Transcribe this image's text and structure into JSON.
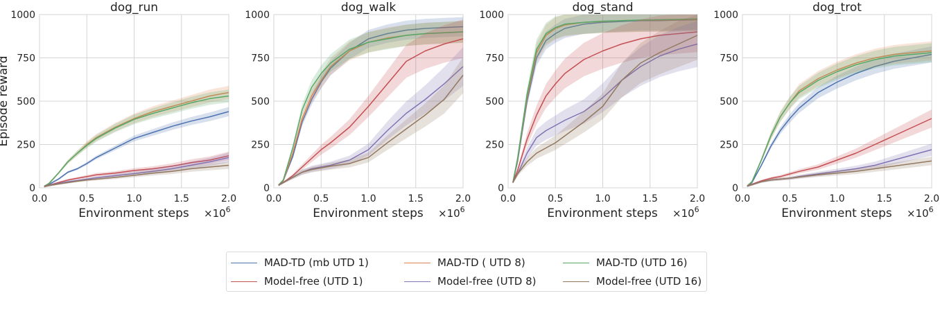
{
  "chart_data": [
    {
      "type": "line",
      "title": "dog_run",
      "xlabel": "Environment steps",
      "ylabel": "Episode reward",
      "x_multiplier": "×10",
      "x_multiplier_exp": "6",
      "xlim": [
        0,
        2.0
      ],
      "ylim": [
        0,
        1000
      ],
      "xticks": [
        "0.0",
        "0.5",
        "1.0",
        "1.5",
        "2.0"
      ],
      "yticks": [
        "0",
        "250",
        "500",
        "750",
        "1000"
      ],
      "x": [
        0.05,
        0.1,
        0.2,
        0.3,
        0.4,
        0.5,
        0.6,
        0.8,
        1.0,
        1.2,
        1.4,
        1.6,
        1.8,
        2.0
      ],
      "series": [
        {
          "name": "MAD-TD (mb UTD 1)",
          "values": [
            8,
            20,
            50,
            90,
            110,
            140,
            175,
            230,
            285,
            320,
            355,
            385,
            410,
            440
          ]
        },
        {
          "name": "MAD-TD ( UTD 8)",
          "values": [
            8,
            25,
            85,
            150,
            200,
            250,
            290,
            350,
            400,
            440,
            470,
            500,
            530,
            550
          ]
        },
        {
          "name": "MAD-TD (UTD 16)",
          "values": [
            8,
            25,
            85,
            150,
            200,
            245,
            285,
            345,
            395,
            430,
            460,
            490,
            515,
            530
          ]
        },
        {
          "name": "Model-free (UTD 1)",
          "values": [
            8,
            15,
            30,
            45,
            55,
            65,
            75,
            85,
            100,
            110,
            125,
            145,
            160,
            185
          ]
        },
        {
          "name": "Model-free (UTD 8)",
          "values": [
            8,
            14,
            25,
            35,
            42,
            50,
            58,
            70,
            82,
            95,
            110,
            130,
            150,
            175
          ]
        },
        {
          "name": "Model-free (UTD 16)",
          "values": [
            8,
            13,
            22,
            30,
            38,
            45,
            50,
            60,
            72,
            85,
            95,
            110,
            120,
            130
          ]
        }
      ]
    },
    {
      "type": "line",
      "title": "dog_walk",
      "xlabel": "Environment steps",
      "x_multiplier": "×10",
      "x_multiplier_exp": "6",
      "xlim": [
        0,
        2.0
      ],
      "ylim": [
        0,
        1000
      ],
      "xticks": [
        "0.0",
        "0.5",
        "1.0",
        "1.5",
        "2.0"
      ],
      "yticks": [
        "0",
        "250",
        "500",
        "750",
        "1000"
      ],
      "x": [
        0.05,
        0.1,
        0.2,
        0.3,
        0.4,
        0.5,
        0.6,
        0.8,
        1.0,
        1.2,
        1.4,
        1.6,
        1.8,
        2.0
      ],
      "series": [
        {
          "name": "MAD-TD (mb UTD 1)",
          "values": [
            15,
            40,
            180,
            380,
            510,
            610,
            690,
            790,
            860,
            890,
            910,
            920,
            925,
            930
          ]
        },
        {
          "name": "MAD-TD ( UTD 8)",
          "values": [
            15,
            40,
            200,
            400,
            530,
            620,
            700,
            790,
            840,
            865,
            880,
            890,
            895,
            900
          ]
        },
        {
          "name": "MAD-TD (UTD 16)",
          "values": [
            15,
            45,
            230,
            450,
            580,
            660,
            720,
            800,
            840,
            860,
            880,
            890,
            895,
            900
          ]
        },
        {
          "name": "Model-free (UTD 1)",
          "values": [
            15,
            30,
            70,
            120,
            170,
            220,
            260,
            350,
            470,
            600,
            730,
            790,
            830,
            860
          ]
        },
        {
          "name": "Model-free (UTD 8)",
          "values": [
            15,
            30,
            60,
            90,
            110,
            120,
            130,
            160,
            220,
            330,
            430,
            510,
            600,
            700
          ]
        },
        {
          "name": "Model-free (UTD 16)",
          "values": [
            15,
            30,
            60,
            90,
            105,
            115,
            125,
            140,
            175,
            260,
            340,
            420,
            510,
            650
          ]
        }
      ]
    },
    {
      "type": "line",
      "title": "dog_stand",
      "xlabel": "Environment steps",
      "x_multiplier": "×10",
      "x_multiplier_exp": "6",
      "xlim": [
        0,
        2.0
      ],
      "ylim": [
        0,
        1000
      ],
      "xticks": [
        "0.0",
        "0.5",
        "1.0",
        "1.5",
        "2.0"
      ],
      "yticks": [
        "0",
        "250",
        "500",
        "750",
        "1000"
      ],
      "x": [
        0.05,
        0.1,
        0.2,
        0.3,
        0.4,
        0.5,
        0.6,
        0.8,
        1.0,
        1.2,
        1.4,
        1.6,
        1.8,
        2.0
      ],
      "series": [
        {
          "name": "MAD-TD (mb UTD 1)",
          "values": [
            30,
            150,
            500,
            750,
            850,
            890,
            920,
            945,
            955,
            960,
            965,
            965,
            968,
            970
          ]
        },
        {
          "name": "MAD-TD ( UTD 8)",
          "values": [
            30,
            160,
            520,
            780,
            880,
            920,
            940,
            955,
            960,
            965,
            968,
            968,
            970,
            972
          ]
        },
        {
          "name": "MAD-TD (UTD 16)",
          "values": [
            30,
            170,
            540,
            800,
            890,
            925,
            945,
            955,
            962,
            965,
            968,
            970,
            972,
            975
          ]
        },
        {
          "name": "Model-free (UTD 1)",
          "values": [
            30,
            100,
            280,
            420,
            530,
            600,
            660,
            740,
            790,
            830,
            860,
            880,
            890,
            900
          ]
        },
        {
          "name": "Model-free (UTD 8)",
          "values": [
            30,
            80,
            200,
            290,
            330,
            360,
            390,
            440,
            520,
            620,
            700,
            760,
            800,
            830
          ]
        },
        {
          "name": "Model-free (UTD 16)",
          "values": [
            30,
            80,
            150,
            200,
            230,
            260,
            300,
            380,
            470,
            620,
            720,
            780,
            830,
            880
          ]
        }
      ]
    },
    {
      "type": "line",
      "title": "dog_trot",
      "xlabel": "Environment steps",
      "x_multiplier": "×10",
      "x_multiplier_exp": "6",
      "xlim": [
        0,
        2.0
      ],
      "ylim": [
        0,
        1000
      ],
      "xticks": [
        "0.0",
        "0.5",
        "1.0",
        "1.5",
        "2.0"
      ],
      "yticks": [
        "0",
        "250",
        "500",
        "750",
        "1000"
      ],
      "x": [
        0.05,
        0.1,
        0.2,
        0.3,
        0.4,
        0.5,
        0.6,
        0.8,
        1.0,
        1.2,
        1.4,
        1.6,
        1.8,
        2.0
      ],
      "series": [
        {
          "name": "MAD-TD (mb UTD 1)",
          "values": [
            10,
            30,
            130,
            240,
            330,
            400,
            460,
            550,
            610,
            660,
            700,
            730,
            750,
            770
          ]
        },
        {
          "name": "MAD-TD ( UTD 8)",
          "values": [
            10,
            35,
            160,
            300,
            410,
            490,
            560,
            630,
            680,
            720,
            750,
            770,
            780,
            790
          ]
        },
        {
          "name": "MAD-TD (UTD 16)",
          "values": [
            10,
            35,
            160,
            300,
            410,
            490,
            550,
            620,
            670,
            710,
            740,
            760,
            770,
            780
          ]
        },
        {
          "name": "Model-free (UTD 1)",
          "values": [
            10,
            20,
            40,
            55,
            65,
            80,
            95,
            120,
            160,
            200,
            250,
            300,
            350,
            400
          ]
        },
        {
          "name": "Model-free (UTD 8)",
          "values": [
            10,
            18,
            35,
            45,
            50,
            55,
            65,
            80,
            95,
            110,
            130,
            160,
            190,
            220
          ]
        },
        {
          "name": "Model-free (UTD 16)",
          "values": [
            10,
            18,
            35,
            45,
            50,
            55,
            62,
            75,
            85,
            95,
            110,
            125,
            140,
            155
          ]
        }
      ]
    }
  ],
  "legend": {
    "items": [
      {
        "label": "MAD-TD (mb UTD 1)",
        "color": "#4c72b0"
      },
      {
        "label": "MAD-TD ( UTD 8)",
        "color": "#dd8452"
      },
      {
        "label": "MAD-TD (UTD 16)",
        "color": "#55a868"
      },
      {
        "label": "Model-free (UTD 1)",
        "color": "#c44e52"
      },
      {
        "label": "Model-free (UTD 8)",
        "color": "#8172b3"
      },
      {
        "label": "Model-free (UTD 16)",
        "color": "#937860"
      }
    ]
  }
}
